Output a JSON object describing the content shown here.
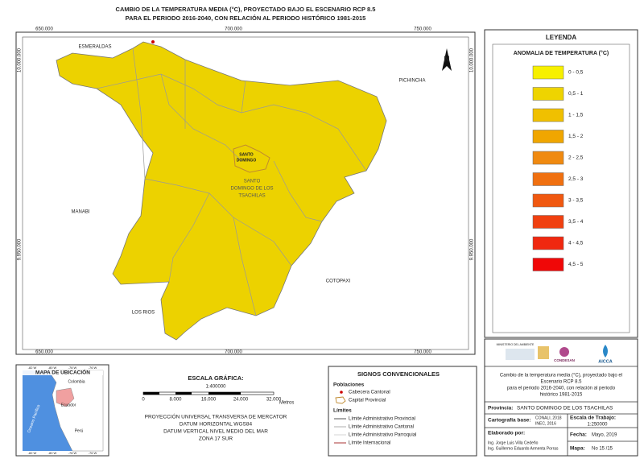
{
  "header": {
    "title_lines": [
      "CAMBIO DE LA TEMPERATURA MEDIA (°C),  PROYECTADO BAJO EL ESCENARIO RCP 8.5",
      "PARA EL PERIODO 2016-2040, CON RELACIÓN AL PERIODO HISTÓRICO 1981-2015"
    ]
  },
  "map": {
    "x_labels": [
      "650.000",
      "700.000",
      "750.000"
    ],
    "y_labels": [
      "10.000.000",
      "9.950.000"
    ],
    "north": "N",
    "places": {
      "esmeraldas": "ESMERALDAS",
      "pichincha": "PICHINCHA",
      "manabi": "MANABI",
      "los_rios": "LOS RIOS",
      "cotopaxi": "COTOPAXI",
      "capital": [
        "SANTO",
        "DOMINGO"
      ],
      "province": [
        "SANTO",
        "DOMINGO DE LOS",
        "TSACHILAS"
      ]
    }
  },
  "legend": {
    "title": "LEYENDA",
    "subtitle": "ANOMALIA DE TEMPERATURA (°C)",
    "classes": [
      {
        "label": "0 - 0,5",
        "color": "#f7f000"
      },
      {
        "label": "0,5 - 1",
        "color": "#eed400"
      },
      {
        "label": "1 - 1,5",
        "color": "#f0c000"
      },
      {
        "label": "1,5 - 2",
        "color": "#f0a600"
      },
      {
        "label": "2 - 2,5",
        "color": "#f08a10"
      },
      {
        "label": "2,5 - 3",
        "color": "#f07010"
      },
      {
        "label": "3 - 3,5",
        "color": "#f05810"
      },
      {
        "label": "3,5 - 4",
        "color": "#f04010"
      },
      {
        "label": "4 - 4,5",
        "color": "#f02810"
      },
      {
        "label": "4,5 - 5",
        "color": "#f00808"
      }
    ]
  },
  "location_map": {
    "title": "MAPA DE UBICACIÓN",
    "countries": [
      "Colombia",
      "Ecuador",
      "Perú"
    ],
    "ocean": "Oceano Pacífico",
    "ticks": [
      "-82 W",
      "-80 W",
      "-78 W",
      "-76 W"
    ]
  },
  "scale": {
    "title": "ESCALA GRÁFICA:",
    "ratio": "1:400000",
    "marks": [
      "0",
      "8.000",
      "16.000",
      "24.000",
      "32.000"
    ],
    "unit": "Metros",
    "projection": [
      "PROYECCIÓN UNIVERSAL TRANSVERSA DE MERCATOR",
      "DATUM HORIZONTAL WGS84",
      "DATUM VERTICAL NIVEL MEDIO DEL MAR",
      "ZONA 17 SUR"
    ]
  },
  "signs": {
    "title": "SIGNOS CONVENCIONALES",
    "populations": "Poblaciones",
    "cabecera": "Cabecera Cantonal",
    "capital": "Capital Provincial",
    "limits": "Límites",
    "limit_items": [
      "Límite Administrativo Provincial",
      "Límite Administrativo Cantonal",
      "Límite Administrativo Parroquial",
      "Límite Internacional"
    ]
  },
  "info": {
    "logos": [
      "MINISTERIO DEL AMBIENTE",
      "CONDESAN",
      "AICCA"
    ],
    "description": [
      "Cambio de la temperatura media (°C),  proyectado bajo el",
      "Escenario RCP 8.5",
      "para el periodo 2016-2040, con relación al periodo",
      "histórico 1981-2015"
    ],
    "provincia_label": "Provincia:",
    "provincia": "SANTO DOMINGO DE LOS TSACHILAS",
    "cartografia_label": "Cartografía base:",
    "cartografia": [
      "CONALI, 2018",
      "INEC, 2016"
    ],
    "escala_label": "Escala de Trabajo:",
    "escala": "1:250000",
    "elaborado_label": "Elaborado por:",
    "authors": [
      "Ing. Jorge Luis Villa Cedeño",
      "Ing. Guillermo Eduardo Armenta Porras"
    ],
    "fecha_label": "Fecha:",
    "fecha": "Mayo, 2019",
    "mapa_label": "Mapa:",
    "mapa": "No 15 /15"
  }
}
